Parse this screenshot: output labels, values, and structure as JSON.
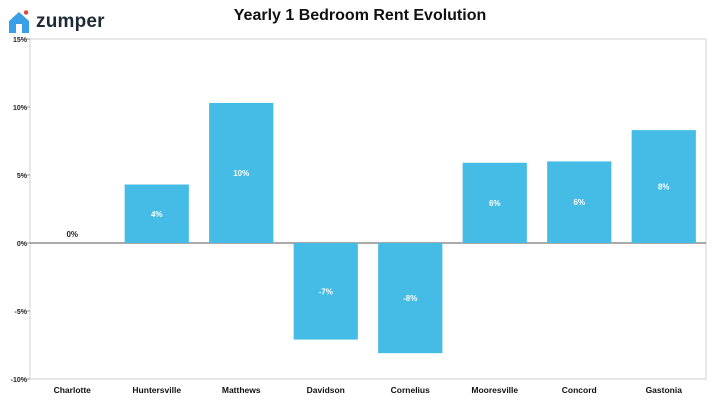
{
  "brand": {
    "logo_text": "zumper",
    "logo_icon": "house-icon",
    "accent_color": "#3aa0e6",
    "dot_color": "#e8443a"
  },
  "chart_data": {
    "type": "bar",
    "title": "Yearly 1 Bedroom Rent Evolution",
    "categories": [
      "Charlotte",
      "Huntersville",
      "Matthews",
      "Davidson",
      "Cornelius",
      "Mooresville",
      "Concord",
      "Gastonia"
    ],
    "values": [
      0,
      4.3,
      10.3,
      -7.1,
      -8.1,
      5.9,
      6.0,
      8.3
    ],
    "data_labels": [
      "0%",
      "4%",
      "10%",
      "-7%",
      "-8%",
      "6%",
      "6%",
      "8%"
    ],
    "yticks": [
      -10,
      -5,
      0,
      5,
      10,
      15
    ],
    "ytick_labels": [
      "-10%",
      "-5%",
      "0%",
      "5%",
      "10%",
      "15%"
    ],
    "ylim": [
      -10,
      15
    ],
    "xlabel": "",
    "ylabel": "",
    "grid": false,
    "bar_color": "#45bce5",
    "legend": "none"
  }
}
